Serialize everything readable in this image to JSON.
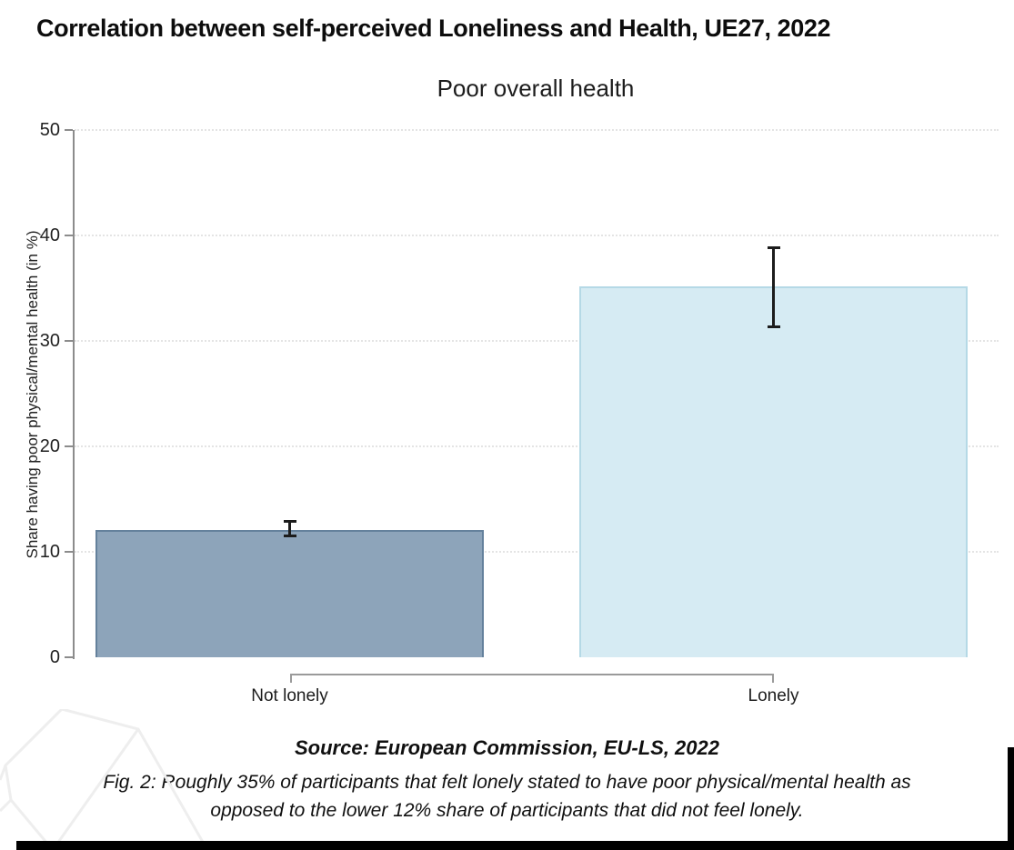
{
  "page": {
    "title": "Correlation between self-perceived Loneliness and Health, UE27, 2022",
    "source_note": "Source: European Commission, EU-LS, 2022",
    "caption_line1": "Fig. 2: Roughly 35% of participants that felt lonely stated to have poor physical/mental health as",
    "caption_line2": "opposed to the lower 12% share of participants that did not feel lonely."
  },
  "chart_data": {
    "type": "bar",
    "title": "Poor overall health",
    "categories": [
      "Not lonely",
      "Lonely"
    ],
    "values": [
      12.1,
      35.2
    ],
    "error_bars": [
      {
        "low": 11.5,
        "high": 12.9
      },
      {
        "low": 31.3,
        "high": 38.9
      }
    ],
    "ylabel": "Share having poor physical/mental health (in %)",
    "xlabel": "",
    "yticks": [
      0,
      10,
      20,
      30,
      40,
      50
    ],
    "ylim": [
      0,
      50
    ],
    "grid": "dotted-horizontal",
    "legend": "none",
    "bar_fill_colors": [
      "#8da4ba",
      "#d6ebf3"
    ],
    "bar_border_colors": [
      "#64819c",
      "#b5d9e6"
    ],
    "error_bar_color": "#1c1c1c"
  }
}
